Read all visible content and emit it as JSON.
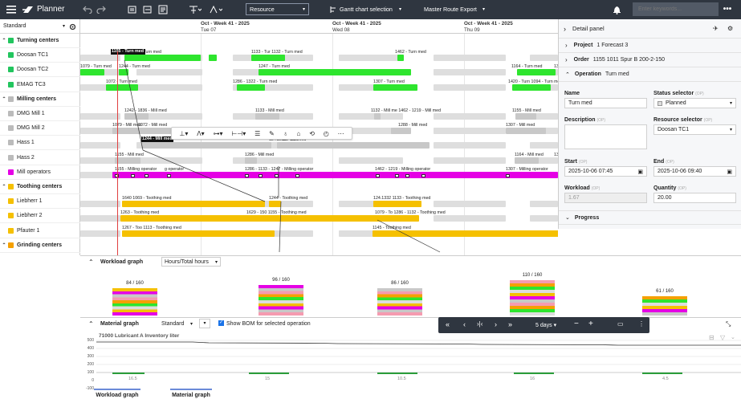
{
  "app": {
    "title": "Planner"
  },
  "toolbar": {
    "view_select": "Resource",
    "gantt_select": "Gantt chart selection",
    "export_select": "Master Route Export",
    "search_placeholder": "Enter keywords..."
  },
  "left_panel": {
    "view_name": "Standard",
    "resources": [
      {
        "label": "Turning centers",
        "group": true,
        "color": "#22c55e"
      },
      {
        "label": "Doosan TC1",
        "group": false,
        "color": "#22c55e"
      },
      {
        "label": "Doosan TC2",
        "group": false,
        "color": "#22c55e"
      },
      {
        "label": "EMAG TC3",
        "group": false,
        "color": "#22c55e"
      },
      {
        "label": "Milling centers",
        "group": true,
        "color": "#bbbbbb"
      },
      {
        "label": "DMG Mill 1",
        "group": false,
        "color": "#bbbbbb"
      },
      {
        "label": "DMG Mill 2",
        "group": false,
        "color": "#bbbbbb"
      },
      {
        "label": "Hass 1",
        "group": false,
        "color": "#bbbbbb"
      },
      {
        "label": "Hass 2",
        "group": false,
        "color": "#bbbbbb"
      },
      {
        "label": "Mill operators",
        "group": false,
        "color": "#e500e5"
      },
      {
        "label": "Toothing centers",
        "group": true,
        "color": "#f5c000"
      },
      {
        "label": "Liebherr 1",
        "group": false,
        "color": "#f5c000"
      },
      {
        "label": "Liebherr 2",
        "group": false,
        "color": "#f5c000"
      },
      {
        "label": "Pfauter 1",
        "group": false,
        "color": "#f5c000"
      },
      {
        "label": "Grinding centers",
        "group": true,
        "color": "#f5a000"
      }
    ]
  },
  "gantt": {
    "week_label": "Oct - Week 41 - 2025",
    "days": [
      "Tue 07",
      "Wed 08",
      "Thu 09"
    ],
    "labels": {
      "r1": [
        "1155 - Turn med",
        "88 - Turn med",
        "1133 - Tur 1132 - Turn med",
        "1462 - Turn med"
      ],
      "r2": [
        "1079 - Turn med",
        "1244 - Turn med",
        "1247 - Turn med",
        "1164 - Turn med",
        "1327 - Turn med"
      ],
      "r3": [
        "1072 - Turn med",
        "1286 - 1322 - Turn med",
        "1307 - Turn med",
        "1420 - Turn 1094 - Turn med"
      ],
      "r5": [
        "1242 - 1836 - Mill med",
        "1133 - Mill med",
        "1132 - Mill me 1462 - 1219 - Mill med",
        "1155 - Mill med"
      ],
      "r6": [
        "1079 - Mill med",
        "1072 - Mill med",
        "1288 - Mill med",
        "1307 - Mill med"
      ],
      "r7": [
        "1244 - Mill med",
        "1247 - Mill med",
        "1232 - Mill med"
      ],
      "r8": [
        "1155 - Mill med",
        "1286 - Mill med",
        "1164 - Mill med",
        "1327 - Mill med"
      ],
      "r9": [
        "1155 - Milling operator",
        "g operator",
        "1286 - 1133 - 1247 - Milling operator",
        "1462 - 1219 - Milling operator",
        "1307 - Milling operator"
      ],
      "r11": [
        "1640 1069 - Toothing med",
        "1244 - Toothing med",
        "124.1332 1133 - Toothing med"
      ],
      "r12": [
        "1263 - Toothing med",
        "1629 - 150 1155 - Toothing med",
        "1079 - To 1286 - 1132 - Toothing med"
      ],
      "r13": [
        "1267 - Too 1113 - Toothing med",
        "1145 - Toothing med",
        "1288 1164 - Toothing med"
      ]
    }
  },
  "detail_panel": {
    "title": "Detail panel",
    "project_label": "Project",
    "project_value": "1 Forecast 3",
    "order_label": "Order",
    "order_value": "1155 1011 Spur B 200-2-150",
    "operation_label": "Operation",
    "operation_value": "Turn med",
    "name_label": "Name",
    "name_value": "Turn med",
    "status_label": "Status selector",
    "status_value": "Planned",
    "description_label": "Description",
    "resource_label": "Resource selector",
    "resource_value": "Doosan TC1",
    "start_label": "Start",
    "start_value": "2025-10-06 07:45",
    "end_label": "End",
    "end_value": "2025-10-06 09:40",
    "workload_label": "Workload",
    "workload_value": "1.67",
    "quantity_label": "Quantity",
    "quantity_value": "20.00",
    "progress_label": "Progress",
    "op_tag": "(OP)"
  },
  "workload": {
    "title": "Workload graph",
    "unit_select": "Hours/Total hours",
    "bars": [
      {
        "label": "84 / 160",
        "fill": 0.525
      },
      {
        "label": "96 / 160",
        "fill": 0.6
      },
      {
        "label": "86 / 160",
        "fill": 0.5375
      },
      {
        "label": "110 / 160",
        "fill": 0.6875
      },
      {
        "label": "61 / 160",
        "fill": 0.38125
      }
    ]
  },
  "material": {
    "title": "Material graph",
    "view_select": "Standard",
    "show_bom_label": "Show BOM for selected operation",
    "item_label": "71000 Lubricant A Inventory liter",
    "y_ticks": [
      "500",
      "400",
      "300",
      "200",
      "100",
      "0",
      "-100"
    ],
    "x_values": [
      "16.5",
      "15",
      "10.5",
      "16",
      "4.5"
    ]
  },
  "float_toolbar": {
    "period": "5 days"
  },
  "bottom_tabs": [
    "Workload graph",
    "Material graph"
  ]
}
